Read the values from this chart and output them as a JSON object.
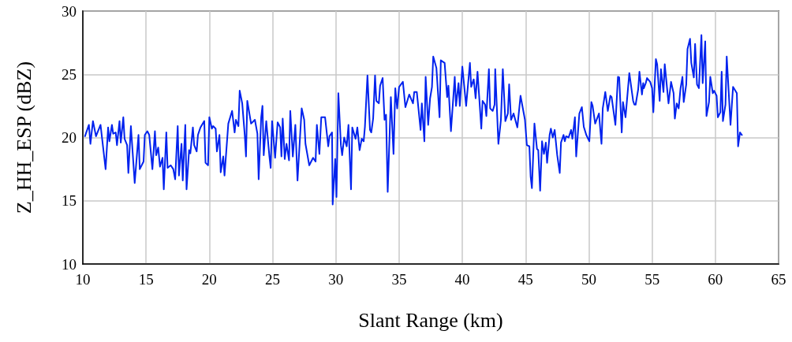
{
  "chart_data": {
    "type": "line",
    "xlabel": "Slant Range (km)",
    "ylabel": "Z_HH_ESP (dBZ)",
    "xlim": [
      10,
      65
    ],
    "xticks": [
      10,
      15,
      20,
      25,
      30,
      35,
      40,
      45,
      50,
      55,
      60,
      65
    ],
    "ylim": [
      10,
      30
    ],
    "yticks": [
      10,
      15,
      20,
      25,
      30
    ],
    "grid": true,
    "marker": "none",
    "line_style": "solid",
    "x": [
      10.17,
      10.48,
      10.6,
      10.8,
      11.04,
      11.4,
      11.8,
      12.0,
      12.1,
      12.3,
      12.4,
      12.6,
      12.7,
      12.9,
      13.0,
      13.2,
      13.3,
      13.5,
      13.6,
      13.8,
      14.1,
      14.4,
      14.5,
      14.8,
      14.9,
      15.1,
      15.25,
      15.5,
      15.7,
      15.8,
      15.96,
      16.1,
      16.3,
      16.4,
      16.6,
      16.7,
      16.95,
      17.15,
      17.3,
      17.5,
      17.6,
      17.8,
      17.9,
      18.1,
      18.2,
      18.4,
      18.5,
      18.7,
      18.8,
      19.0,
      19.1,
      19.3,
      19.6,
      19.7,
      19.9,
      20.0,
      20.2,
      20.3,
      20.5,
      20.6,
      20.8,
      20.9,
      21.1,
      21.2,
      21.5,
      21.8,
      22.0,
      22.1,
      22.3,
      22.4,
      22.6,
      22.8,
      22.9,
      23.0,
      23.3,
      23.6,
      23.8,
      23.9,
      24.1,
      24.2,
      24.3,
      24.5,
      24.75,
      24.85,
      24.96,
      25.2,
      25.4,
      25.6,
      25.7,
      25.8,
      25.96,
      26.1,
      26.3,
      26.4,
      26.6,
      26.8,
      26.97,
      27.3,
      27.5,
      27.6,
      27.9,
      28.2,
      28.4,
      28.5,
      28.7,
      28.85,
      29.15,
      29.4,
      29.5,
      29.7,
      29.75,
      29.95,
      30.05,
      30.2,
      30.4,
      30.5,
      30.66,
      30.86,
      31.0,
      31.2,
      31.3,
      31.56,
      31.7,
      31.88,
      32.05,
      32.2,
      32.3,
      32.5,
      32.7,
      32.8,
      32.95,
      33.1,
      33.2,
      33.4,
      33.5,
      33.7,
      33.85,
      33.97,
      34.1,
      34.35,
      34.56,
      34.7,
      34.85,
      35.0,
      35.3,
      35.5,
      35.8,
      36.1,
      36.2,
      36.4,
      36.7,
      36.8,
      37.0,
      37.1,
      37.3,
      37.45,
      37.6,
      37.7,
      37.95,
      38.2,
      38.3,
      38.6,
      38.8,
      38.9,
      39.1,
      39.4,
      39.5,
      39.7,
      39.8,
      40.0,
      40.3,
      40.6,
      40.7,
      40.9,
      41.05,
      41.2,
      41.5,
      41.6,
      41.8,
      41.9,
      42.1,
      42.2,
      42.4,
      42.55,
      42.6,
      42.85,
      43.05,
      43.2,
      43.4,
      43.6,
      43.7,
      43.85,
      44.05,
      44.35,
      44.6,
      44.95,
      45.1,
      45.3,
      45.4,
      45.5,
      45.7,
      45.9,
      46.0,
      46.15,
      46.3,
      46.45,
      46.6,
      46.7,
      46.9,
      47.0,
      47.15,
      47.3,
      47.5,
      47.7,
      47.8,
      48.0,
      48.1,
      48.2,
      48.4,
      48.6,
      48.7,
      48.9,
      49.0,
      49.25,
      49.45,
      49.6,
      49.8,
      50.04,
      50.2,
      50.3,
      50.5,
      50.8,
      51.0,
      51.1,
      51.3,
      51.5,
      51.7,
      51.8,
      52.1,
      52.3,
      52.4,
      52.6,
      52.7,
      52.9,
      53.2,
      53.5,
      53.6,
      53.7,
      53.9,
      54.0,
      54.2,
      54.3,
      54.35,
      54.5,
      54.6,
      54.85,
      55.0,
      55.1,
      55.3,
      55.4,
      55.6,
      55.7,
      55.9,
      56.0,
      56.3,
      56.5,
      56.7,
      56.8,
      56.95,
      57.1,
      57.25,
      57.4,
      57.5,
      57.7,
      57.8,
      58.0,
      58.1,
      58.3,
      58.4,
      58.55,
      58.7,
      58.9,
      59.0,
      59.2,
      59.3,
      59.5,
      59.6,
      59.8,
      59.9,
      60.1,
      60.2,
      60.4,
      60.5,
      60.6,
      60.8,
      60.9,
      61.2,
      61.4,
      61.7,
      61.8,
      61.95,
      62.1
    ],
    "series": [
      {
        "color": "#0022ee",
        "values": [
          20.1,
          21.0,
          19.5,
          21.3,
          20.1,
          21.0,
          17.5,
          20.8,
          19.7,
          21.0,
          20.3,
          20.4,
          19.4,
          21.3,
          19.6,
          21.6,
          19.9,
          19.4,
          17.2,
          20.9,
          16.4,
          20.2,
          17.5,
          18.1,
          20.2,
          20.5,
          20.2,
          17.5,
          20.5,
          18.6,
          19.2,
          17.7,
          18.4,
          15.9,
          20.4,
          17.6,
          17.8,
          17.5,
          16.7,
          20.9,
          17.0,
          19.5,
          16.6,
          21.0,
          15.9,
          19.0,
          18.75,
          20.8,
          19.4,
          18.9,
          20.2,
          20.8,
          21.3,
          18.0,
          17.8,
          21.6,
          20.7,
          20.9,
          20.7,
          18.9,
          20.2,
          17.25,
          18.5,
          17.0,
          21.1,
          22.1,
          20.4,
          21.4,
          20.9,
          23.7,
          22.7,
          20.2,
          18.5,
          22.9,
          21.1,
          21.4,
          20.3,
          16.7,
          21.6,
          22.5,
          18.6,
          21.3,
          18.5,
          17.6,
          21.3,
          18.4,
          21.2,
          20.8,
          18.5,
          21.5,
          18.3,
          19.5,
          18.2,
          22.1,
          18.5,
          21.0,
          16.6,
          22.3,
          21.4,
          19.5,
          17.8,
          18.4,
          18.1,
          21.0,
          18.7,
          21.6,
          21.6,
          19.3,
          20.1,
          20.4,
          14.7,
          18.3,
          15.3,
          23.5,
          19.4,
          18.6,
          20.0,
          19.3,
          21.0,
          15.9,
          20.8,
          19.9,
          20.8,
          19.0,
          19.9,
          19.7,
          20.85,
          24.9,
          20.6,
          20.4,
          21.5,
          24.9,
          22.9,
          22.7,
          24.1,
          24.7,
          21.4,
          21.8,
          15.7,
          23.2,
          18.7,
          23.9,
          22.3,
          24.0,
          24.4,
          22.4,
          23.4,
          22.7,
          23.6,
          23.6,
          20.6,
          22.7,
          19.7,
          24.8,
          21.0,
          23.1,
          24.0,
          26.4,
          25.5,
          21.6,
          26.1,
          25.9,
          23.2,
          24.1,
          20.5,
          24.8,
          22.5,
          24.3,
          22.5,
          25.6,
          22.5,
          25.9,
          24.0,
          24.6,
          23.1,
          25.2,
          20.7,
          22.9,
          22.6,
          21.7,
          25.4,
          22.3,
          22.1,
          22.6,
          25.4,
          19.5,
          21.4,
          25.4,
          21.3,
          21.9,
          24.2,
          21.4,
          21.9,
          20.8,
          23.3,
          21.4,
          19.4,
          19.3,
          16.9,
          16.0,
          21.1,
          19.1,
          19.0,
          15.8,
          19.7,
          18.7,
          19.6,
          18.0,
          20.2,
          20.7,
          20.0,
          20.6,
          18.6,
          17.2,
          19.6,
          20.2,
          19.7,
          20.1,
          20.0,
          20.6,
          19.9,
          21.6,
          18.5,
          21.9,
          22.4,
          20.85,
          20.2,
          19.7,
          22.8,
          22.5,
          21.1,
          21.9,
          19.5,
          22.3,
          23.6,
          22.1,
          23.3,
          23.2,
          21.0,
          24.8,
          24.75,
          20.4,
          22.8,
          21.6,
          25.1,
          22.9,
          22.6,
          22.6,
          23.8,
          25.2,
          23.4,
          24.3,
          23.9,
          24.3,
          24.7,
          24.4,
          23.9,
          22.0,
          26.2,
          25.8,
          22.9,
          25.4,
          23.6,
          25.8,
          22.7,
          24.4,
          23.5,
          21.5,
          22.7,
          22.3,
          23.9,
          24.8,
          22.8,
          24.2,
          27.0,
          27.8,
          25.9,
          24.75,
          27.4,
          24.2,
          23.9,
          28.1,
          24.3,
          27.6,
          21.7,
          22.8,
          24.8,
          23.5,
          23.7,
          23.3,
          21.6,
          22.0,
          25.2,
          21.3,
          22.6,
          26.4,
          21.0,
          24.0,
          23.5,
          19.3,
          20.4,
          20.2
        ]
      }
    ]
  }
}
